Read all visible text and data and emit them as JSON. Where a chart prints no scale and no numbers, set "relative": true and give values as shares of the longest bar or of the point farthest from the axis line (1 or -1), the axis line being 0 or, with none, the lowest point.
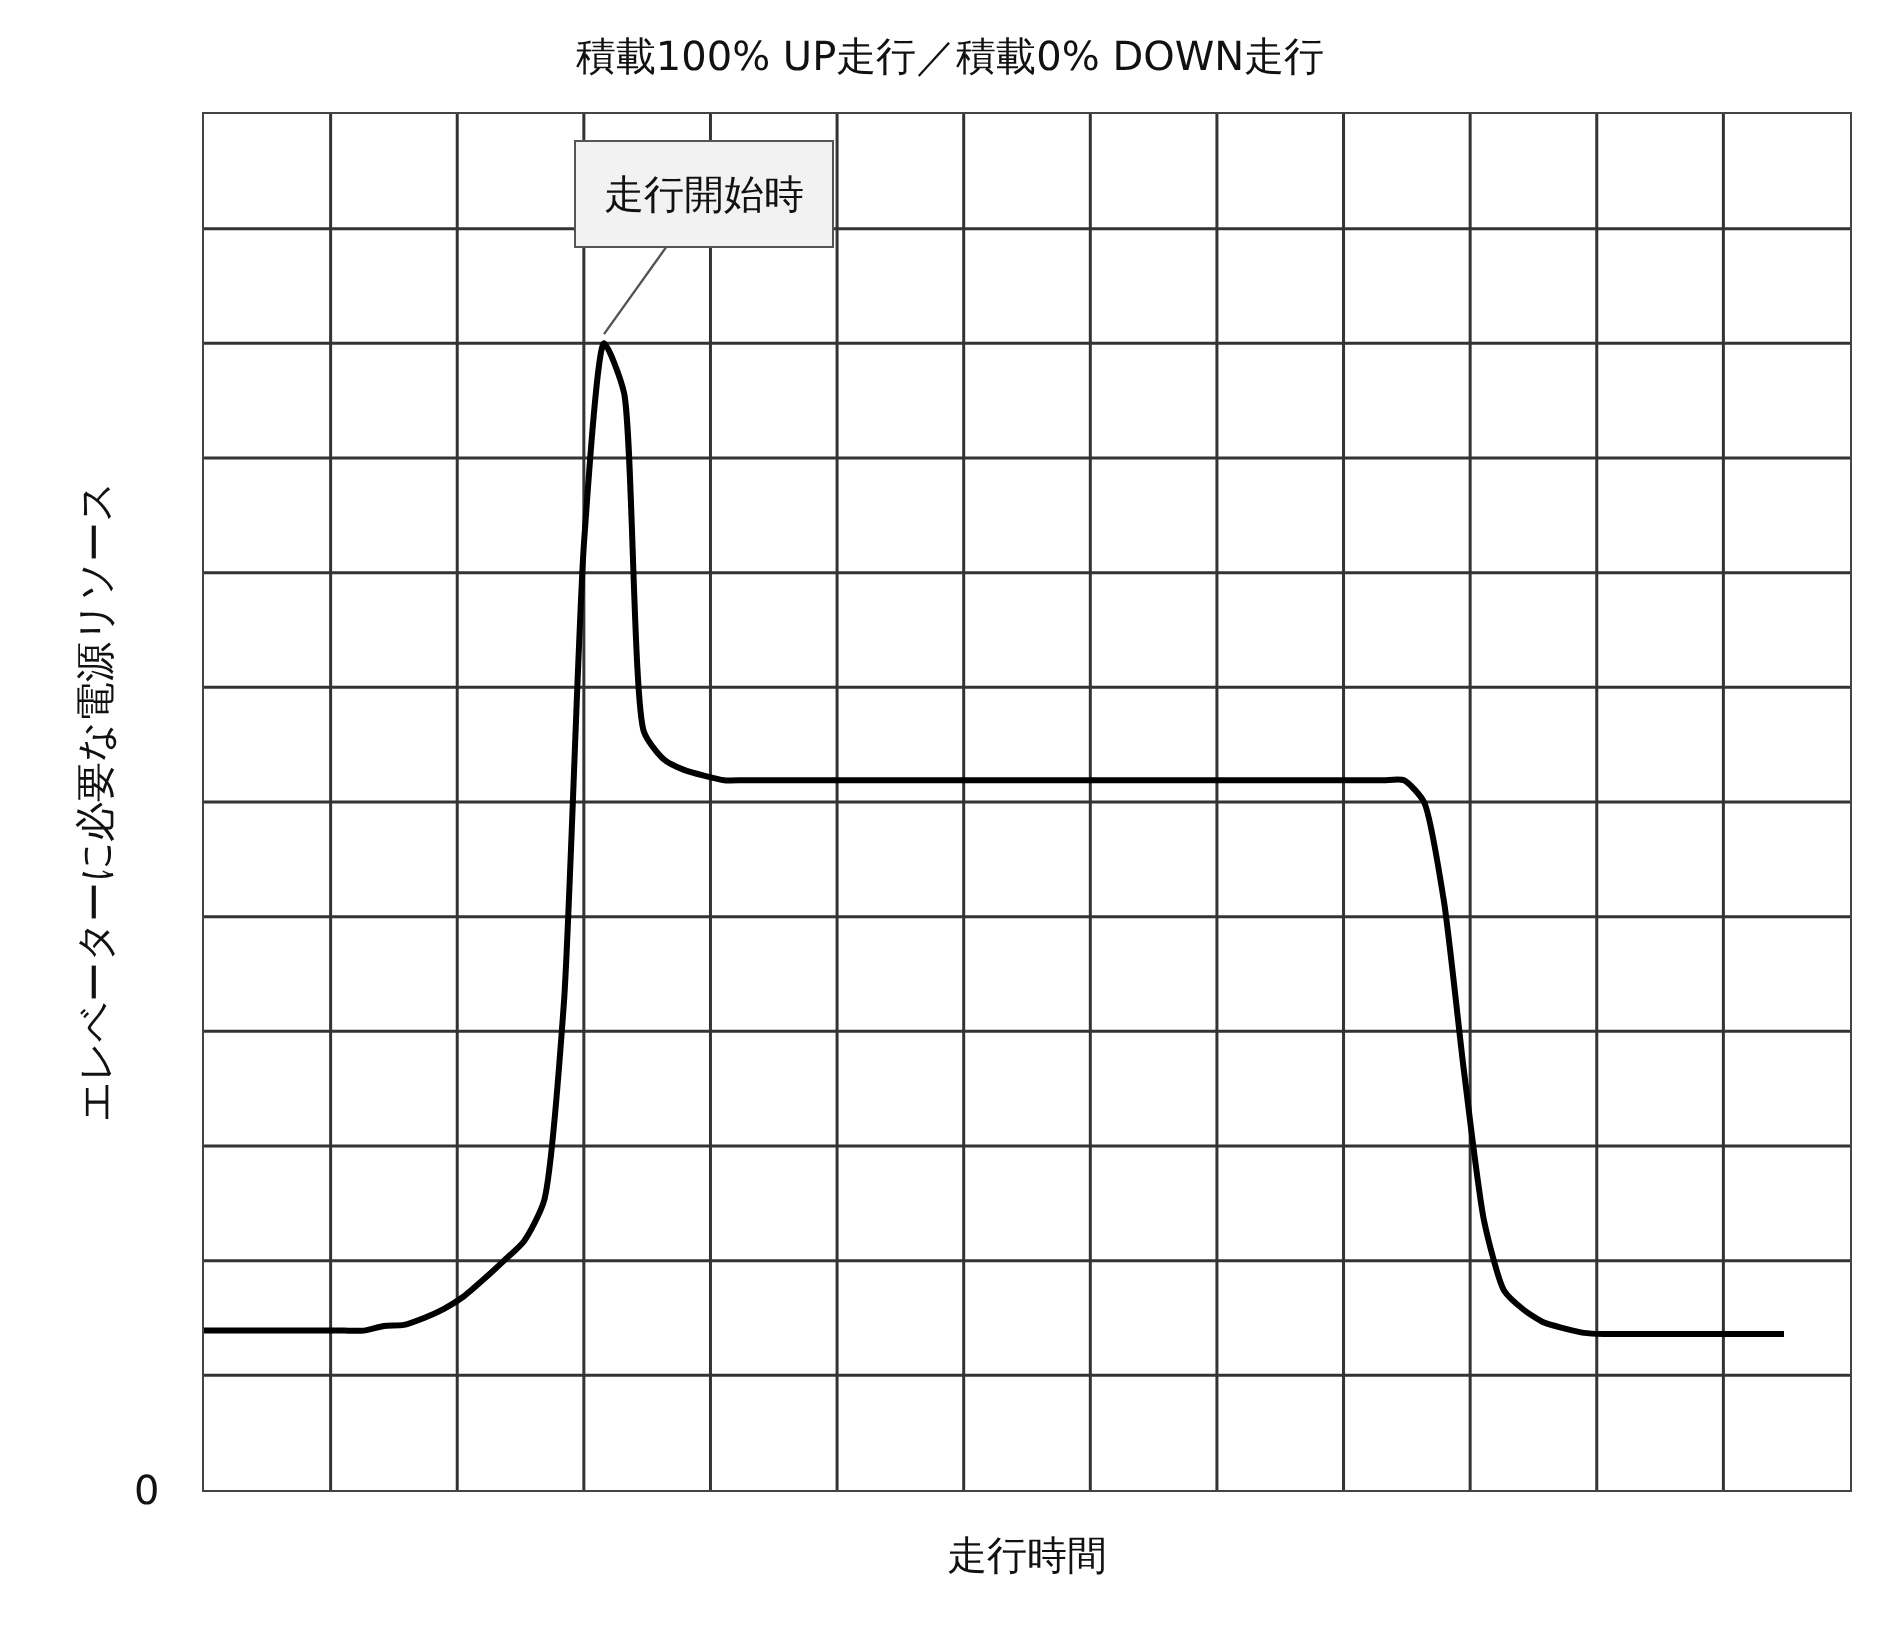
{
  "chart_data": {
    "type": "line",
    "title": "積載100% UP走行／積載0% DOWN走行",
    "xlabel": "走行時間",
    "ylabel": "エレベーターに必要な電源リソース",
    "relative": true,
    "grid": true,
    "marker": "none",
    "line_style": "solid",
    "annotations": [
      "走行開始時",
      "0"
    ],
    "categories": [
      null,
      null,
      null,
      null,
      null,
      null,
      null,
      null,
      null,
      null,
      null,
      null,
      null,
      null,
      null,
      null,
      null,
      null,
      null,
      null,
      null,
      null,
      null,
      null,
      null,
      null,
      null,
      null,
      null,
      null,
      null,
      null,
      null,
      null,
      null,
      null,
      null,
      null,
      null,
      null,
      null,
      null,
      null,
      null,
      null,
      null,
      null,
      null,
      null,
      null,
      null,
      null,
      null,
      null,
      null,
      null,
      null,
      null,
      null,
      null,
      null,
      null,
      null,
      null,
      null,
      null,
      null,
      null,
      null,
      null,
      null,
      null,
      null,
      null,
      null,
      null,
      null,
      null,
      null,
      null
    ],
    "series": [
      {
        "color": "#000000",
        "values": [
          0.139,
          0.139,
          0.139,
          0.139,
          0.139,
          0.139,
          0.139,
          0.139,
          0.139,
          0.143,
          0.144,
          0.15,
          0.158,
          0.169,
          0.184,
          0.2,
          0.217,
          0.252,
          0.426,
          0.826,
          1.0,
          0.957,
          0.661,
          0.637,
          0.628,
          0.623,
          0.619,
          0.619,
          0.619,
          0.619,
          0.619,
          0.619,
          0.619,
          0.619,
          0.619,
          0.619,
          0.619,
          0.619,
          0.619,
          0.619,
          0.619,
          0.619,
          0.619,
          0.619,
          0.619,
          0.619,
          0.619,
          0.619,
          0.619,
          0.619,
          0.619,
          0.619,
          0.619,
          0.619,
          0.619,
          0.619,
          0.619,
          0.619,
          0.619,
          0.619,
          0.619,
          0.6,
          0.513,
          0.365,
          0.235,
          0.174,
          0.157,
          0.146,
          0.141,
          0.137,
          0.136,
          0.136,
          0.136,
          0.136,
          0.136,
          0.136,
          0.136,
          0.136,
          0.136,
          0.136
        ]
      }
    ]
  }
}
